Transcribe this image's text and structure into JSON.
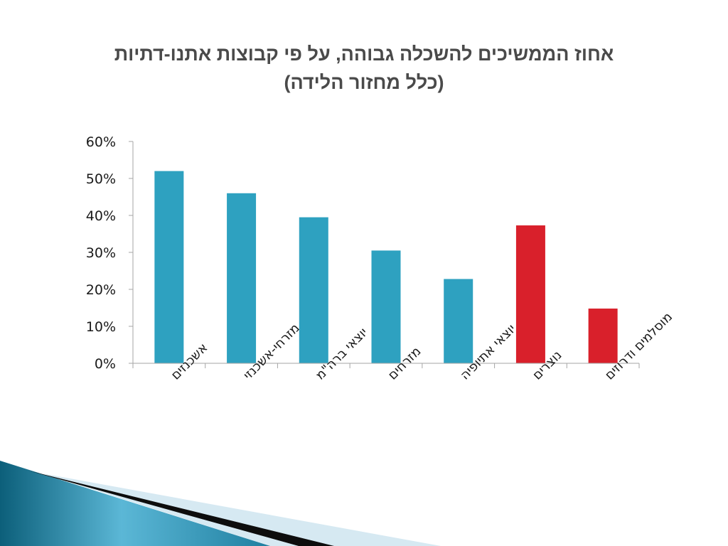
{
  "slide": {
    "title_line1": "אחוז הממשיכים להשכלה גבוהה, על פי קבוצות אתנו-דתיות",
    "title_line2": "(כלל מחזור הלידה)"
  },
  "colors": {
    "bar_blue": "#2ea1c0",
    "bar_red": "#d9202b",
    "axis": "#a6a6a6"
  },
  "chart_data": {
    "type": "bar",
    "title": "אחוז הממשיכים להשכלה גבוהה, על פי קבוצות אתנו-דתיות (כלל מחזור הלידה)",
    "categories": [
      "אשכנזים",
      "מזרחי-אשכנזי",
      "יוצאי ברה\"מ",
      "מזרחים",
      "יוצאי אתיופיה",
      "נוצרים",
      "מוסלמים ודרוזים"
    ],
    "values": [
      0.52,
      0.46,
      0.395,
      0.305,
      0.228,
      0.373,
      0.148
    ],
    "bar_colors": [
      "#2ea1c0",
      "#2ea1c0",
      "#2ea1c0",
      "#2ea1c0",
      "#2ea1c0",
      "#d9202b",
      "#d9202b"
    ],
    "ylim": [
      0,
      0.6
    ],
    "yticks": [
      "0%",
      "10%",
      "20%",
      "30%",
      "40%",
      "50%",
      "60%"
    ],
    "xlabel": "",
    "ylabel": "",
    "grid": false,
    "legend": "none"
  }
}
